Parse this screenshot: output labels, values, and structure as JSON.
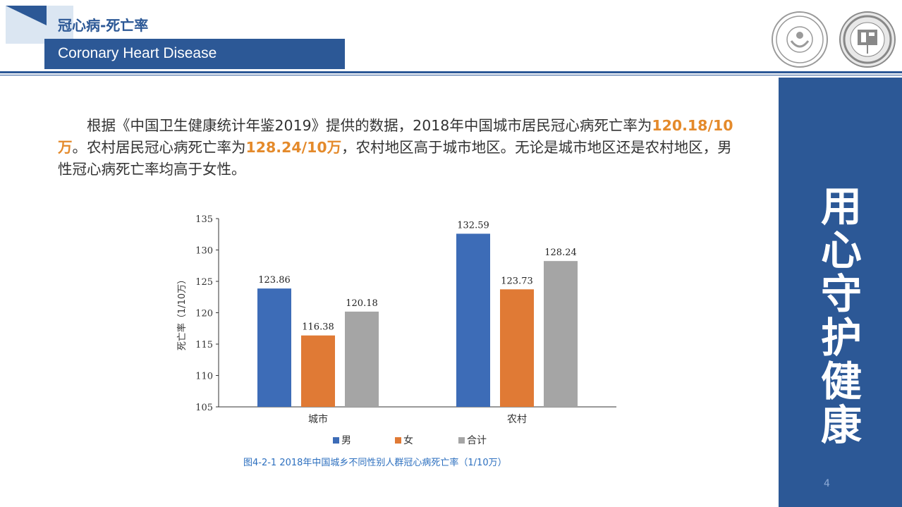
{
  "header": {
    "title_cn": "冠心病-死亡率",
    "title_en": "Coronary Heart Disease",
    "logo1_name": "ncc-logo-icon",
    "logo2_name": "f2-logo-icon"
  },
  "body": {
    "p1": "根据《中国卫生健康统计年鉴2019》提供的数据，2018年中国城市居民冠心病死亡率为",
    "urban_rate": "120.18/10万",
    "p2": "。农村居民冠心病死亡率为",
    "rural_rate": "128.24/10万",
    "p3": "，农村地区高于城市地区。无论是城市地区还是农村地区，男性冠心病死亡率均高于女性。"
  },
  "side": {
    "calligraphy": [
      "用",
      "心",
      "守",
      "护",
      "健",
      "康"
    ],
    "page_number": "4"
  },
  "colors": {
    "brand": "#2c5896",
    "male": "#3d6cb7",
    "female": "#e07a35",
    "total": "#a5a5a5",
    "highlight": "#e48a2b"
  },
  "chart_data": {
    "type": "bar",
    "categories": [
      "城市",
      "农村"
    ],
    "series": [
      {
        "name": "男",
        "values": [
          123.86,
          132.59
        ]
      },
      {
        "name": "女",
        "values": [
          116.38,
          123.73
        ]
      },
      {
        "name": "合计",
        "values": [
          120.18,
          128.24
        ]
      }
    ],
    "value_labels": [
      [
        "123.86",
        "132.59"
      ],
      [
        "116.38",
        "123.73"
      ],
      [
        "120.18",
        "128.24"
      ]
    ],
    "ylabel": "死亡率（1/10万）",
    "ylim": [
      105,
      135
    ],
    "yticks": [
      "105",
      "110",
      "115",
      "120",
      "125",
      "130",
      "135"
    ],
    "legend_position": "bottom",
    "caption": "图4-2-1   2018年中国城乡不同性别人群冠心病死亡率（1/10万）"
  }
}
